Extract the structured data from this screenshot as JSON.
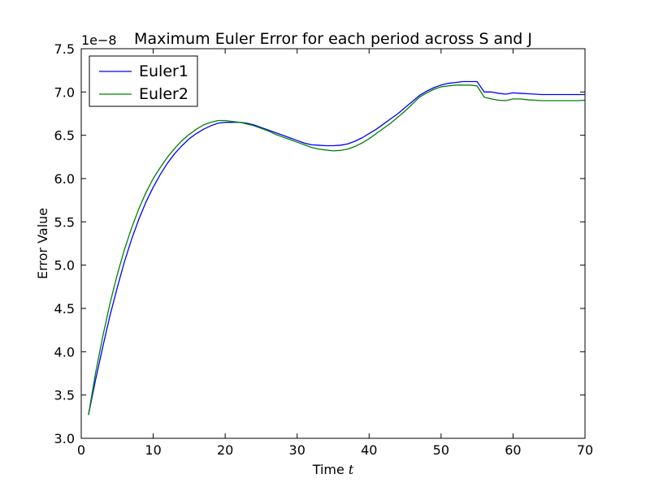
{
  "chart_data": {
    "type": "line",
    "title": "Maximum Euler Error for each period across S and J",
    "xlabel": "Time",
    "xlabel_var": "t",
    "ylabel": "Error Value",
    "y_scale_label": "1e−8",
    "xlim": [
      0,
      70
    ],
    "ylim": [
      3.0,
      7.5
    ],
    "xticks": [
      0,
      10,
      20,
      30,
      40,
      50,
      60,
      70
    ],
    "xtick_labels": [
      "0",
      "10",
      "20",
      "30",
      "40",
      "50",
      "60",
      "70"
    ],
    "yticks": [
      3.0,
      3.5,
      4.0,
      4.5,
      5.0,
      5.5,
      6.0,
      6.5,
      7.0,
      7.5
    ],
    "ytick_labels": [
      "3.0",
      "3.5",
      "4.0",
      "4.5",
      "5.0",
      "5.5",
      "6.0",
      "6.5",
      "7.0",
      "7.5"
    ],
    "grid": false,
    "legend_position": "top-left",
    "x": [
      1,
      2,
      3,
      4,
      5,
      6,
      7,
      8,
      9,
      10,
      11,
      12,
      13,
      14,
      15,
      16,
      17,
      18,
      19,
      20,
      21,
      22,
      23,
      24,
      25,
      26,
      27,
      28,
      29,
      30,
      31,
      32,
      33,
      34,
      35,
      36,
      37,
      38,
      39,
      40,
      41,
      42,
      43,
      44,
      45,
      46,
      47,
      48,
      49,
      50,
      51,
      52,
      53,
      54,
      55,
      56,
      57,
      58,
      59,
      60,
      61,
      62,
      63,
      64,
      65,
      66,
      67,
      68,
      69,
      70
    ],
    "series": [
      {
        "name": "Euler1",
        "color": "#0000ff",
        "values": [
          3.27,
          3.68,
          4.06,
          4.42,
          4.74,
          5.04,
          5.3,
          5.53,
          5.73,
          5.9,
          6.05,
          6.18,
          6.29,
          6.38,
          6.46,
          6.52,
          6.57,
          6.61,
          6.64,
          6.65,
          6.65,
          6.65,
          6.64,
          6.62,
          6.59,
          6.56,
          6.53,
          6.5,
          6.47,
          6.44,
          6.41,
          6.39,
          6.385,
          6.38,
          6.38,
          6.385,
          6.4,
          6.43,
          6.47,
          6.52,
          6.57,
          6.63,
          6.69,
          6.75,
          6.82,
          6.89,
          6.96,
          7.01,
          7.05,
          7.08,
          7.1,
          7.11,
          7.12,
          7.12,
          7.12,
          7.0,
          7.0,
          6.985,
          6.975,
          6.99,
          6.985,
          6.98,
          6.975,
          6.97,
          6.97,
          6.97,
          6.97,
          6.97,
          6.97,
          6.97
        ]
      },
      {
        "name": "Euler2",
        "color": "#008000",
        "values": [
          3.27,
          3.76,
          4.18,
          4.56,
          4.89,
          5.18,
          5.43,
          5.65,
          5.84,
          6.0,
          6.13,
          6.25,
          6.35,
          6.44,
          6.51,
          6.57,
          6.62,
          6.65,
          6.67,
          6.67,
          6.66,
          6.65,
          6.63,
          6.61,
          6.58,
          6.55,
          6.51,
          6.48,
          6.45,
          6.42,
          6.39,
          6.36,
          6.34,
          6.33,
          6.32,
          6.325,
          6.34,
          6.37,
          6.41,
          6.46,
          6.52,
          6.58,
          6.64,
          6.71,
          6.78,
          6.86,
          6.94,
          6.99,
          7.03,
          7.06,
          7.07,
          7.08,
          7.08,
          7.08,
          7.07,
          6.94,
          6.92,
          6.905,
          6.9,
          6.92,
          6.92,
          6.91,
          6.905,
          6.9,
          6.9,
          6.9,
          6.9,
          6.9,
          6.9,
          6.905
        ]
      }
    ]
  }
}
